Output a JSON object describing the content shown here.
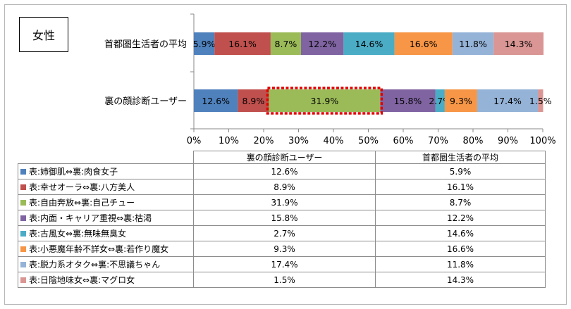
{
  "badge": "女性",
  "chart_data": {
    "type": "bar",
    "orientation": "horizontal",
    "stacked": true,
    "categories": [
      "首都圏生活者の平均",
      "裏の顔診断ユーザー"
    ],
    "series": [
      {
        "name": "表:姉御肌⇔裏:肉食女子",
        "color": "#4f81bd",
        "values": [
          5.9,
          12.6
        ]
      },
      {
        "name": "表:幸せオーラ⇔裏:八方美人",
        "color": "#c0504d",
        "values": [
          16.1,
          8.9
        ]
      },
      {
        "name": "表:自由奔放⇔裏:自己チュー",
        "color": "#9bbb59",
        "values": [
          8.7,
          31.9
        ]
      },
      {
        "name": "表:内面・キャリア重視⇔裏:枯渇",
        "color": "#8064a2",
        "values": [
          12.2,
          15.8
        ]
      },
      {
        "name": "表:古風女⇔裏:無味無臭女",
        "color": "#4bacc6",
        "values": [
          14.6,
          2.7
        ]
      },
      {
        "name": "表:小悪魔年齢不詳女⇔裏:若作り魔女",
        "color": "#f79646",
        "values": [
          16.6,
          9.3
        ]
      },
      {
        "name": "表:脱力系オタク⇔裏:不思議ちゃん",
        "color": "#95b3d7",
        "values": [
          11.8,
          17.4
        ]
      },
      {
        "name": "表:日陰地味女⇔裏:マグロ女",
        "color": "#d99694",
        "values": [
          14.3,
          1.5
        ]
      }
    ],
    "xlim": [
      0,
      100
    ],
    "x_ticks": [
      "0%",
      "10%",
      "20%",
      "30%",
      "40%",
      "50%",
      "60%",
      "70%",
      "80%",
      "90%",
      "100%"
    ],
    "highlight": {
      "category": "裏の顔診断ユーザー",
      "series": "表:自由奔放⇔裏:自己チュー",
      "style": "red dashed box"
    },
    "grid": false
  },
  "table": {
    "headers": [
      "裏の顔診断ユーザー",
      "首都圏生活者の平均"
    ],
    "rows": [
      {
        "label": "表:姉御肌⇔裏:肉食女子",
        "a": "12.6%",
        "b": "5.9%"
      },
      {
        "label": "表:幸せオーラ⇔裏:八方美人",
        "a": "8.9%",
        "b": "16.1%"
      },
      {
        "label": "表:自由奔放⇔裏:自己チュー",
        "a": "31.9%",
        "b": "8.7%"
      },
      {
        "label": "表:内面・キャリア重視⇔裏:枯渇",
        "a": "15.8%",
        "b": "12.2%"
      },
      {
        "label": "表:古風女⇔裏:無味無臭女",
        "a": "2.7%",
        "b": "14.6%"
      },
      {
        "label": "表:小悪魔年齢不詳女⇔裏:若作り魔女",
        "a": "9.3%",
        "b": "16.6%"
      },
      {
        "label": "表:脱力系オタク⇔裏:不思議ちゃん",
        "a": "17.4%",
        "b": "11.8%"
      },
      {
        "label": "表:日陰地味女⇔裏:マグロ女",
        "a": "1.5%",
        "b": "14.3%"
      }
    ]
  }
}
